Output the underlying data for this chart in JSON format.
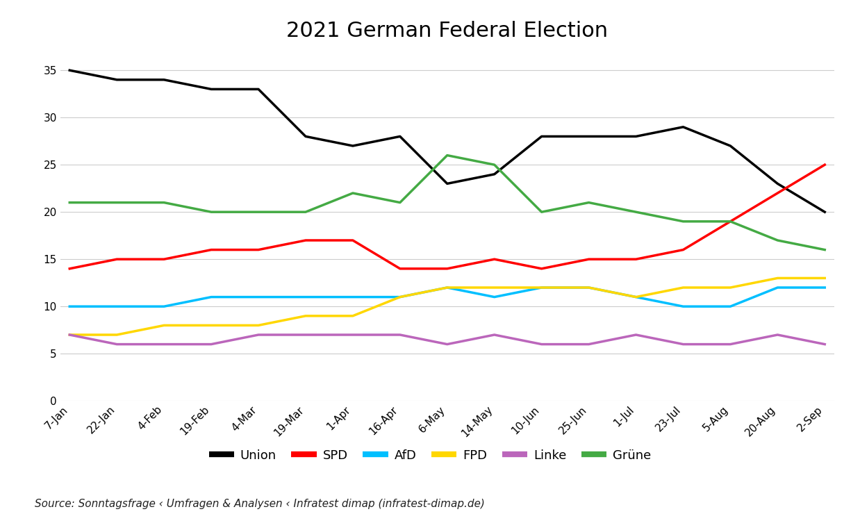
{
  "title": "2021 German Federal Election",
  "source": "Source: Sonntagsfrage ‹ Umfragen & Analysen ‹ Infratest dimap (infratest-dimap.de)",
  "x_labels": [
    "7-Jan",
    "22-Jan",
    "4-Feb",
    "19-Feb",
    "4-Mar",
    "19-Mar",
    "1-Apr",
    "16-Apr",
    "6-May",
    "14-May",
    "10-Jun",
    "25-Jun",
    "1-Jul",
    "23-Jul",
    "5-Aug",
    "20-Aug",
    "2-Sep"
  ],
  "series": {
    "Union": {
      "color": "#000000",
      "values": [
        35,
        34,
        34,
        33,
        33,
        28,
        27,
        28,
        23,
        24,
        28,
        28,
        28,
        29,
        27,
        23,
        20
      ]
    },
    "SPD": {
      "color": "#FF0000",
      "values": [
        14,
        15,
        15,
        16,
        16,
        17,
        17,
        14,
        14,
        15,
        14,
        15,
        15,
        16,
        19,
        22,
        25
      ]
    },
    "AfD": {
      "color": "#00BFFF",
      "values": [
        10,
        10,
        10,
        11,
        11,
        11,
        11,
        11,
        12,
        11,
        12,
        12,
        11,
        10,
        10,
        12,
        12
      ]
    },
    "FPD": {
      "color": "#FFD700",
      "values": [
        7,
        7,
        8,
        8,
        8,
        9,
        9,
        11,
        12,
        12,
        12,
        12,
        11,
        12,
        12,
        13,
        13
      ]
    },
    "Linke": {
      "color": "#BB66BB",
      "values": [
        7,
        6,
        6,
        6,
        7,
        7,
        7,
        7,
        6,
        7,
        6,
        6,
        7,
        6,
        6,
        7,
        6
      ]
    },
    "Grüne": {
      "color": "#44AA44",
      "values": [
        21,
        21,
        21,
        20,
        20,
        20,
        22,
        21,
        26,
        25,
        20,
        21,
        20,
        19,
        19,
        17,
        16
      ]
    }
  },
  "ylim": [
    0,
    37
  ],
  "yticks": [
    0,
    5,
    10,
    15,
    20,
    25,
    30,
    35
  ],
  "background_color": "#FFFFFF",
  "grid_color": "#CCCCCC",
  "linewidth": 2.5,
  "title_fontsize": 22,
  "source_fontsize": 11,
  "legend_fontsize": 13,
  "tick_fontsize": 11
}
